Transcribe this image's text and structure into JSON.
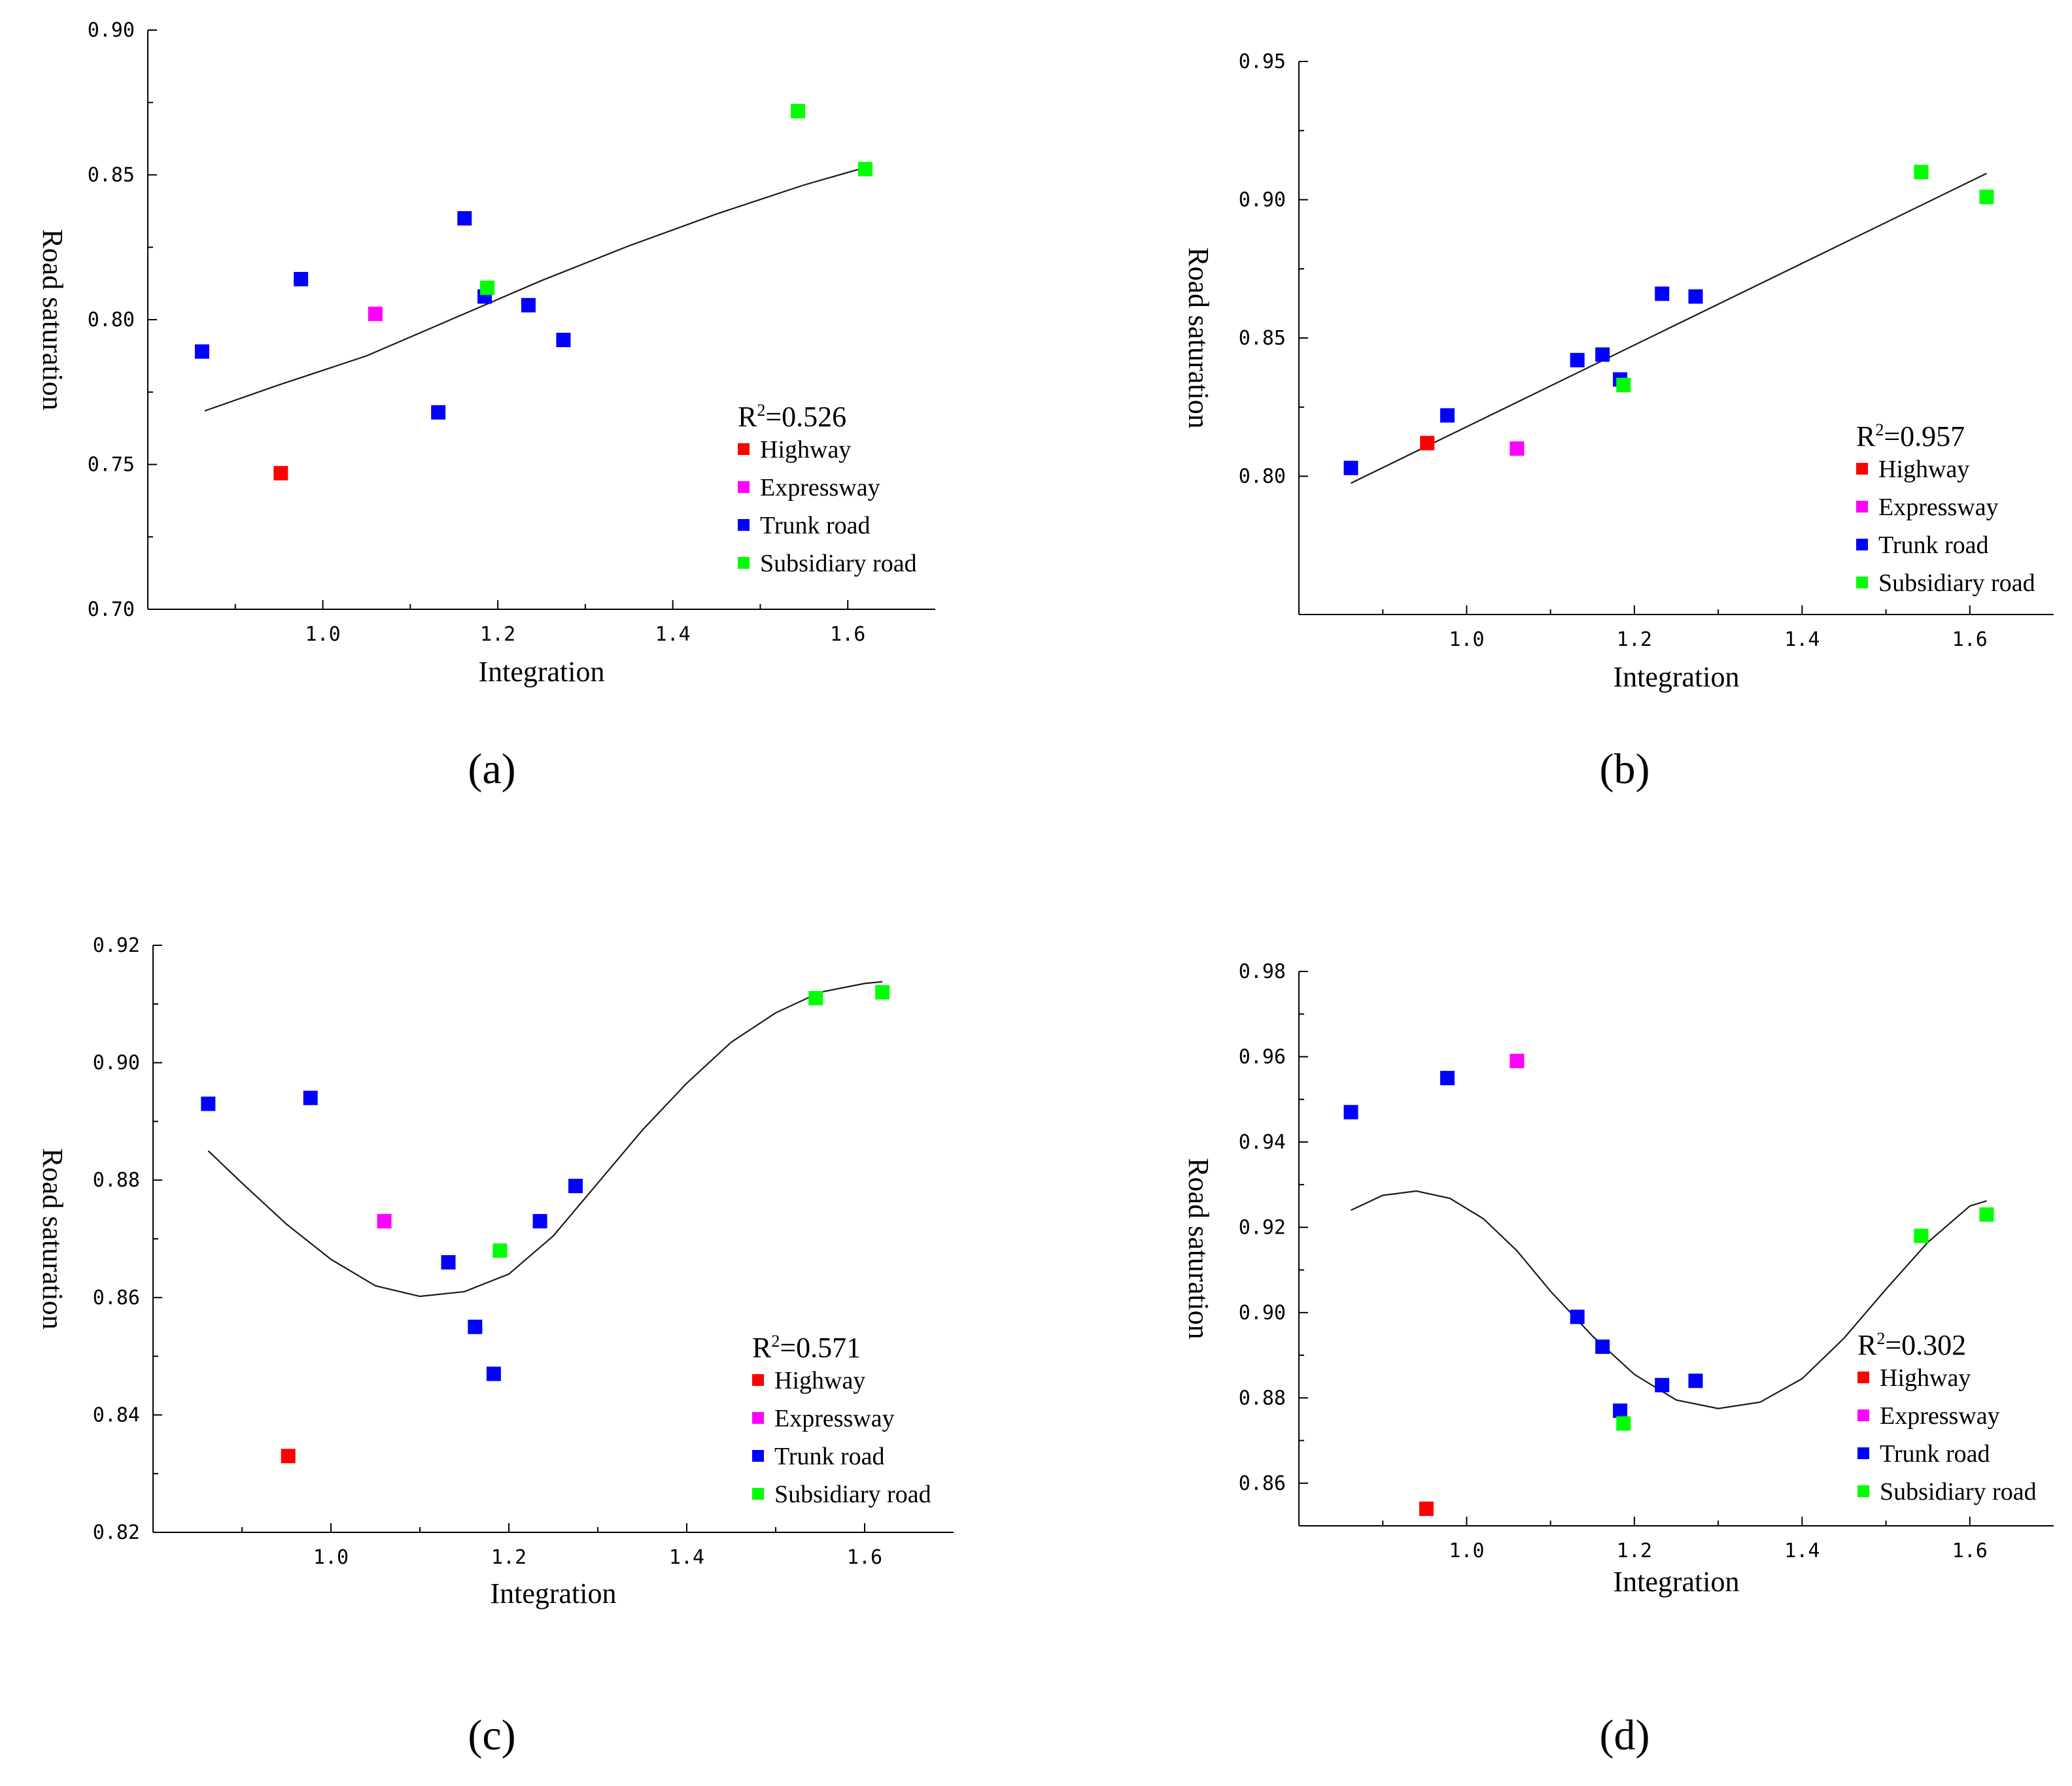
{
  "figure": {
    "panels": [
      "(a)",
      "(b)",
      "(c)",
      "(d)"
    ]
  },
  "colors": {
    "Highway": "#ff0000",
    "Expressway": "#ff00ff",
    "Trunk road": "#0000ff",
    "Subsidiary road": "#00ff00"
  },
  "chart_data": [
    {
      "type": "scatter",
      "panel": "(a)",
      "xlabel": "Integration",
      "ylabel": "Road saturation",
      "xlim": [
        0.8,
        1.7
      ],
      "ylim": [
        0.7,
        0.9
      ],
      "xticks": [
        1.0,
        1.2,
        1.4,
        1.6
      ],
      "xtick_labels": [
        "1.0",
        "1.2",
        "1.4",
        "1.6"
      ],
      "yticks": [
        0.7,
        0.75,
        0.8,
        0.85,
        0.9
      ],
      "ytick_labels": [
        "0.70",
        "0.75",
        "0.80",
        "0.85",
        "0.90"
      ],
      "r2": "=0.526",
      "legend": [
        "Highway",
        "Expressway",
        "Trunk road",
        "Subsidiary road"
      ],
      "series": [
        {
          "name": "Highway",
          "points": [
            [
              0.952,
              0.747
            ]
          ]
        },
        {
          "name": "Expressway",
          "points": [
            [
              1.06,
              0.802
            ]
          ]
        },
        {
          "name": "Trunk road",
          "points": [
            [
              0.862,
              0.789
            ],
            [
              0.975,
              0.814
            ],
            [
              1.132,
              0.768
            ],
            [
              1.162,
              0.835
            ],
            [
              1.185,
              0.808
            ],
            [
              1.235,
              0.805
            ],
            [
              1.275,
              0.793
            ]
          ]
        },
        {
          "name": "Subsidiary road",
          "points": [
            [
              1.188,
              0.811
            ],
            [
              1.543,
              0.872
            ],
            [
              1.62,
              0.852
            ]
          ]
        }
      ],
      "fit": [
        [
          0.865,
          0.7685
        ],
        [
          0.95,
          0.7775
        ],
        [
          1.05,
          0.7875
        ],
        [
          1.15,
          0.8005
        ],
        [
          1.25,
          0.8135
        ],
        [
          1.35,
          0.8255
        ],
        [
          1.45,
          0.8365
        ],
        [
          1.55,
          0.8465
        ],
        [
          1.625,
          0.853
        ]
      ]
    },
    {
      "type": "scatter",
      "panel": "(b)",
      "xlabel": "Integration",
      "ylabel": "Road saturation",
      "xlim": [
        0.8,
        1.7
      ],
      "ylim": [
        0.75,
        0.95
      ],
      "xticks": [
        1.0,
        1.2,
        1.4,
        1.6
      ],
      "xtick_labels": [
        "1.0",
        "1.2",
        "1.4",
        "1.6"
      ],
      "yticks": [
        0.8,
        0.85,
        0.9,
        0.95
      ],
      "ytick_labels": [
        "0.80",
        "0.85",
        "0.90",
        "0.95"
      ],
      "r2": "=0.957",
      "legend": [
        "Highway",
        "Expressway",
        "Trunk road",
        "Subsidiary road"
      ],
      "series": [
        {
          "name": "Highway",
          "points": [
            [
              0.953,
              0.812
            ]
          ]
        },
        {
          "name": "Expressway",
          "points": [
            [
              1.06,
              0.81
            ]
          ]
        },
        {
          "name": "Trunk road",
          "points": [
            [
              0.862,
              0.803
            ],
            [
              0.977,
              0.822
            ],
            [
              1.132,
              0.842
            ],
            [
              1.162,
              0.844
            ],
            [
              1.183,
              0.835
            ],
            [
              1.233,
              0.866
            ],
            [
              1.273,
              0.865
            ]
          ]
        },
        {
          "name": "Subsidiary road",
          "points": [
            [
              1.187,
              0.833
            ],
            [
              1.542,
              0.91
            ],
            [
              1.62,
              0.901
            ]
          ]
        }
      ],
      "fit": [
        [
          0.862,
          0.7975
        ],
        [
          1.62,
          0.9095
        ]
      ]
    },
    {
      "type": "scatter",
      "panel": "(c)",
      "xlabel": "Integration",
      "ylabel": "Road saturation",
      "xlim": [
        0.8,
        1.7
      ],
      "ylim": [
        0.82,
        0.92
      ],
      "xticks": [
        1.0,
        1.2,
        1.4,
        1.6
      ],
      "xtick_labels": [
        "1.0",
        "1.2",
        "1.4",
        "1.6"
      ],
      "yticks": [
        0.82,
        0.84,
        0.86,
        0.88,
        0.9,
        0.92
      ],
      "ytick_labels": [
        "0.82",
        "0.84",
        "0.86",
        "0.88",
        "0.90",
        "0.92"
      ],
      "r2": "=0.571",
      "legend": [
        "Highway",
        "Expressway",
        "Trunk road",
        "Subsidiary road"
      ],
      "series": [
        {
          "name": "Highway",
          "points": [
            [
              0.952,
              0.833
            ]
          ]
        },
        {
          "name": "Expressway",
          "points": [
            [
              1.06,
              0.873
            ]
          ]
        },
        {
          "name": "Trunk road",
          "points": [
            [
              0.862,
              0.893
            ],
            [
              0.977,
              0.894
            ],
            [
              1.132,
              0.866
            ],
            [
              1.162,
              0.855
            ],
            [
              1.183,
              0.847
            ],
            [
              1.235,
              0.873
            ],
            [
              1.275,
              0.879
            ]
          ]
        },
        {
          "name": "Subsidiary road",
          "points": [
            [
              1.19,
              0.868
            ],
            [
              1.545,
              0.911
            ],
            [
              1.62,
              0.912
            ]
          ]
        }
      ],
      "fit": [
        [
          0.862,
          0.885
        ],
        [
          0.9,
          0.8795
        ],
        [
          0.95,
          0.8725
        ],
        [
          1.0,
          0.8665
        ],
        [
          1.05,
          0.862
        ],
        [
          1.1,
          0.8602
        ],
        [
          1.15,
          0.861
        ],
        [
          1.2,
          0.864
        ],
        [
          1.25,
          0.8705
        ],
        [
          1.3,
          0.8795
        ],
        [
          1.35,
          0.8885
        ],
        [
          1.4,
          0.8965
        ],
        [
          1.45,
          0.9035
        ],
        [
          1.5,
          0.9085
        ],
        [
          1.55,
          0.912
        ],
        [
          1.6,
          0.9135
        ],
        [
          1.62,
          0.9138
        ]
      ]
    },
    {
      "type": "scatter",
      "panel": "(d)",
      "xlabel": "Integration",
      "ylabel": "Road saturation",
      "xlim": [
        0.8,
        1.7
      ],
      "ylim": [
        0.85,
        0.98
      ],
      "xticks": [
        1.0,
        1.2,
        1.4,
        1.6
      ],
      "xtick_labels": [
        "1.0",
        "1.2",
        "1.4",
        "1.6"
      ],
      "yticks": [
        0.86,
        0.88,
        0.9,
        0.92,
        0.94,
        0.96,
        0.98
      ],
      "ytick_labels": [
        "0.86",
        "0.88",
        "0.90",
        "0.92",
        "0.94",
        "0.96",
        "0.98"
      ],
      "r2": "=0.302",
      "legend": [
        "Highway",
        "Expressway",
        "Trunk road",
        "Subsidiary road"
      ],
      "series": [
        {
          "name": "Highway",
          "points": [
            [
              0.952,
              0.854
            ]
          ]
        },
        {
          "name": "Expressway",
          "points": [
            [
              1.06,
              0.959
            ]
          ]
        },
        {
          "name": "Trunk road",
          "points": [
            [
              0.862,
              0.947
            ],
            [
              0.977,
              0.955
            ],
            [
              1.132,
              0.899
            ],
            [
              1.162,
              0.892
            ],
            [
              1.183,
              0.877
            ],
            [
              1.233,
              0.883
            ],
            [
              1.273,
              0.884
            ]
          ]
        },
        {
          "name": "Subsidiary road",
          "points": [
            [
              1.187,
              0.874
            ],
            [
              1.542,
              0.918
            ],
            [
              1.62,
              0.923
            ]
          ]
        }
      ],
      "fit": [
        [
          0.862,
          0.924
        ],
        [
          0.9,
          0.9275
        ],
        [
          0.94,
          0.9285
        ],
        [
          0.98,
          0.9268
        ],
        [
          1.02,
          0.922
        ],
        [
          1.06,
          0.9145
        ],
        [
          1.1,
          0.905
        ],
        [
          1.15,
          0.8945
        ],
        [
          1.2,
          0.8855
        ],
        [
          1.25,
          0.8795
        ],
        [
          1.3,
          0.8775
        ],
        [
          1.35,
          0.879
        ],
        [
          1.4,
          0.8845
        ],
        [
          1.45,
          0.894
        ],
        [
          1.5,
          0.9055
        ],
        [
          1.55,
          0.9165
        ],
        [
          1.6,
          0.925
        ],
        [
          1.62,
          0.9262
        ]
      ]
    }
  ]
}
